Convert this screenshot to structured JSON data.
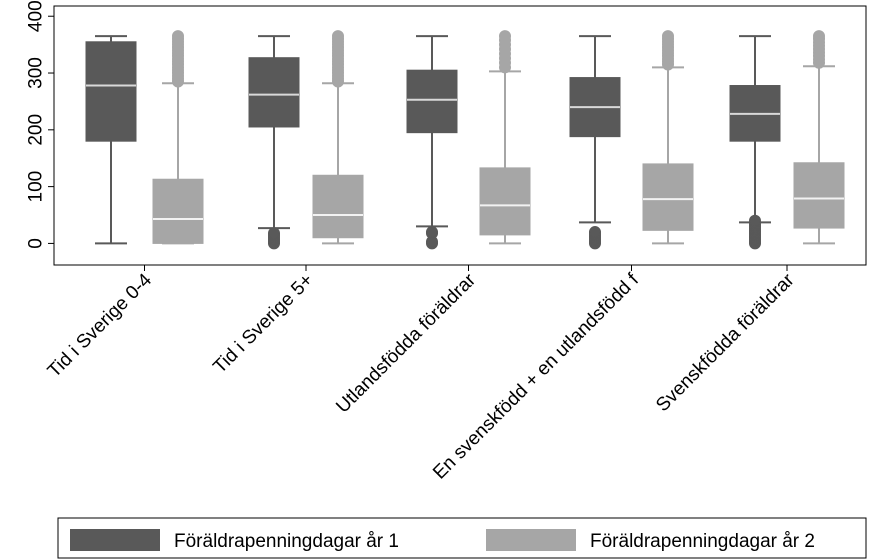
{
  "chart_data": {
    "type": "box",
    "title": "",
    "xlabel": "",
    "ylabel": "",
    "ylim": [
      -38,
      418
    ],
    "yticks": [
      0,
      100,
      200,
      300,
      400
    ],
    "ytick_labels": [
      "0",
      "100",
      "200",
      "300",
      "400"
    ],
    "grid": false,
    "legend_position": "bottom",
    "categories": [
      "Tid i Sverige 0-4",
      "Tid i Sverige 5+",
      "Utlandsfödda föräldrar",
      "En svenskfödd + en utlandsfödd f",
      "Svenskfödda föräldrar"
    ],
    "series": [
      {
        "name": "Föräldrapenningdagar år 1",
        "color": "#595959",
        "median_color": "#d9d9d9",
        "boxes": [
          {
            "whisker_low": 0,
            "q1": 180,
            "median": 278,
            "q3": 355,
            "whisker_high": 365,
            "outliers_low": [],
            "outliers_high": []
          },
          {
            "whisker_low": 27,
            "q1": 205,
            "median": 262,
            "q3": 327,
            "whisker_high": 365,
            "outliers_low": [
              0,
              3,
              6,
              9,
              12,
              15,
              18
            ],
            "outliers_high": []
          },
          {
            "whisker_low": 30,
            "q1": 195,
            "median": 253,
            "q3": 305,
            "whisker_high": 365,
            "outliers_low": [
              0,
              3,
              18,
              20
            ],
            "outliers_high": []
          },
          {
            "whisker_low": 37,
            "q1": 188,
            "median": 240,
            "q3": 292,
            "whisker_high": 365,
            "outliers_low": [
              0,
              3,
              6,
              9,
              12,
              15,
              18,
              20
            ],
            "outliers_high": []
          },
          {
            "whisker_low": 37,
            "q1": 180,
            "median": 228,
            "q3": 278,
            "whisker_high": 365,
            "outliers_low": [
              0,
              3,
              6,
              9,
              12,
              15,
              18,
              21,
              24,
              27,
              30,
              33,
              36,
              40
            ],
            "outliers_high": []
          }
        ]
      },
      {
        "name": "Föräldrapenningdagar år 2",
        "color": "#a6a6a6",
        "median_color": "#f2f2f2",
        "boxes": [
          {
            "whisker_low": 0,
            "q1": 0,
            "median": 43,
            "q3": 113,
            "whisker_high": 282,
            "outliers_low": [],
            "outliers_high": [
              285,
              290,
              295,
              300,
              305,
              310,
              315,
              320,
              325,
              330,
              335,
              340,
              345,
              350,
              355,
              360,
              365
            ]
          },
          {
            "whisker_low": 0,
            "q1": 10,
            "median": 50,
            "q3": 120,
            "whisker_high": 282,
            "outliers_low": [],
            "outliers_high": [
              285,
              290,
              295,
              300,
              305,
              310,
              315,
              320,
              325,
              330,
              335,
              340,
              345,
              350,
              355,
              360,
              365
            ]
          },
          {
            "whisker_low": 0,
            "q1": 15,
            "median": 67,
            "q3": 133,
            "whisker_high": 303,
            "outliers_low": [],
            "outliers_high": [
              310,
              318,
              326,
              334,
              342,
              350,
              358,
              365
            ]
          },
          {
            "whisker_low": 0,
            "q1": 23,
            "median": 78,
            "q3": 140,
            "whisker_high": 310,
            "outliers_low": [],
            "outliers_high": [
              315,
              320,
              325,
              330,
              335,
              340,
              345,
              350,
              355,
              360,
              365
            ]
          },
          {
            "whisker_low": 0,
            "q1": 27,
            "median": 79,
            "q3": 142,
            "whisker_high": 312,
            "outliers_low": [],
            "outliers_high": [
              318,
              324,
              330,
              336,
              342,
              348,
              354,
              360,
              365
            ]
          }
        ]
      }
    ]
  }
}
